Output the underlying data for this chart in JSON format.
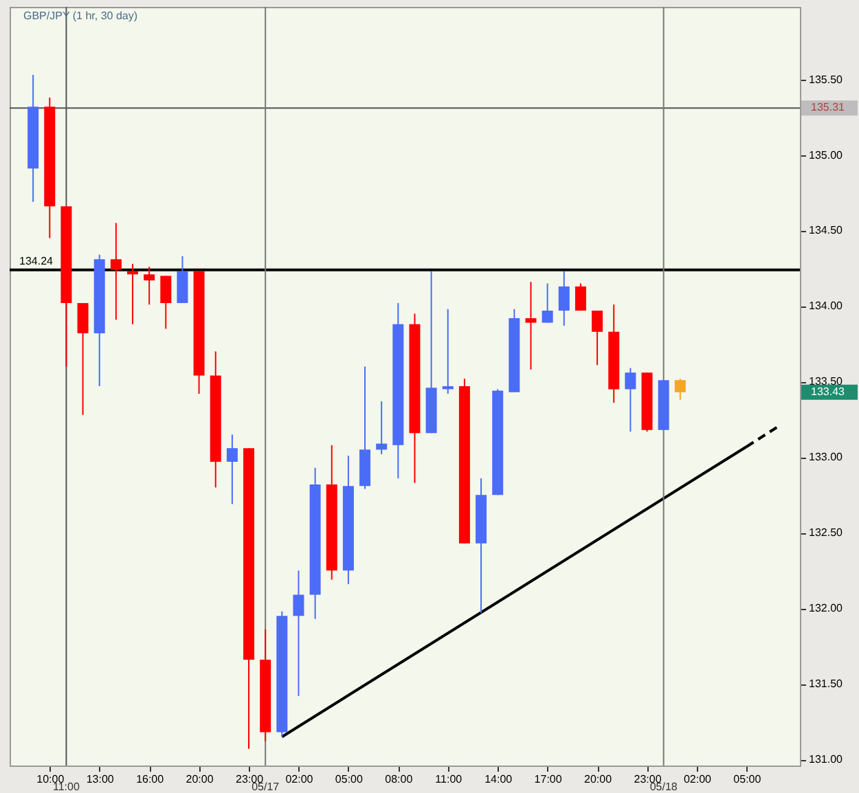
{
  "chart_data": {
    "type": "candlestick",
    "title": "GBP/JPY (1 hr, 30 day)",
    "categories": [
      null,
      "10:00",
      "11:00",
      null,
      "13:00",
      null,
      null,
      "16:00",
      null,
      null,
      "20:00",
      null,
      null,
      "23:00",
      "05/17",
      null,
      "02:00",
      null,
      null,
      "05:00",
      null,
      null,
      "08:00",
      null,
      null,
      "11:00",
      null,
      null,
      "14:00",
      null,
      null,
      "17:00",
      null,
      null,
      "20:00",
      null,
      null,
      "23:00",
      "05/18",
      null,
      "02:00",
      null,
      null,
      "05:00",
      null,
      null
    ],
    "ohlc": [
      [
        134.91,
        135.53,
        134.69,
        135.32
      ],
      [
        135.32,
        135.38,
        134.45,
        134.66
      ],
      [
        134.66,
        134.66,
        133.6,
        134.02
      ],
      [
        134.02,
        134.02,
        133.28,
        133.82
      ],
      [
        133.82,
        134.34,
        133.47,
        134.31
      ],
      [
        134.31,
        134.55,
        133.91,
        134.24
      ],
      [
        134.23,
        134.28,
        133.88,
        134.21
      ],
      [
        134.21,
        134.26,
        134.01,
        134.17
      ],
      [
        134.2,
        134.2,
        133.85,
        134.02
      ],
      [
        134.02,
        134.33,
        134.02,
        134.23
      ],
      [
        134.23,
        134.23,
        133.42,
        133.54
      ],
      [
        133.54,
        133.7,
        132.8,
        132.97
      ],
      [
        132.97,
        133.15,
        132.69,
        133.06
      ],
      [
        133.06,
        133.06,
        131.07,
        131.66
      ],
      [
        131.66,
        131.86,
        131.12,
        131.18
      ],
      [
        131.18,
        131.98,
        131.15,
        131.95
      ],
      [
        131.95,
        132.25,
        131.42,
        132.09
      ],
      [
        132.09,
        132.93,
        131.93,
        132.82
      ],
      [
        132.82,
        133.08,
        132.19,
        132.25
      ],
      [
        132.25,
        133.01,
        132.16,
        132.81
      ],
      [
        132.81,
        133.6,
        132.79,
        133.05
      ],
      [
        133.05,
        133.37,
        133.02,
        133.09
      ],
      [
        133.08,
        134.02,
        132.86,
        133.88
      ],
      [
        133.88,
        133.95,
        132.83,
        133.16
      ],
      [
        133.16,
        134.23,
        133.16,
        133.46
      ],
      [
        133.45,
        133.98,
        133.42,
        133.47
      ],
      [
        133.47,
        133.52,
        132.43,
        132.43
      ],
      [
        132.43,
        132.86,
        131.97,
        132.75
      ],
      [
        132.75,
        133.45,
        132.75,
        133.44
      ],
      [
        133.43,
        133.98,
        133.43,
        133.92
      ],
      [
        133.92,
        134.16,
        133.58,
        133.89
      ],
      [
        133.89,
        134.15,
        133.89,
        133.97
      ],
      [
        133.97,
        134.23,
        133.87,
        134.13
      ],
      [
        134.13,
        134.15,
        133.97,
        133.97
      ],
      [
        133.97,
        133.97,
        133.61,
        133.83
      ],
      [
        133.83,
        134.01,
        133.36,
        133.45
      ],
      [
        133.45,
        133.59,
        133.17,
        133.56
      ],
      [
        133.56,
        133.56,
        133.17,
        133.18
      ],
      [
        133.18,
        133.51,
        133.18,
        133.51
      ],
      [
        133.51,
        133.52,
        133.38,
        133.43
      ],
      null,
      null,
      null,
      null,
      null,
      null
    ],
    "colors": [
      "#4a6cf7",
      "#ff0000",
      "#ff0000",
      "#ff0000",
      "#4a6cf7",
      "#ff0000",
      "#ff0000",
      "#ff0000",
      "#ff0000",
      "#4a6cf7",
      "#ff0000",
      "#ff0000",
      "#4a6cf7",
      "#ff0000",
      "#ff0000",
      "#4a6cf7",
      "#4a6cf7",
      "#4a6cf7",
      "#ff0000",
      "#4a6cf7",
      "#4a6cf7",
      "#4a6cf7",
      "#4a6cf7",
      "#ff0000",
      "#4a6cf7",
      "#4a6cf7",
      "#ff0000",
      "#4a6cf7",
      "#4a6cf7",
      "#4a6cf7",
      "#ff0000",
      "#4a6cf7",
      "#4a6cf7",
      "#ff0000",
      "#ff0000",
      "#ff0000",
      "#4a6cf7",
      "#ff0000",
      "#4a6cf7",
      "#f5a623",
      null,
      null,
      null,
      null,
      null,
      null
    ],
    "series": [
      {
        "type": "line",
        "color": "#000000",
        "line_style": "solid",
        "values": [
          null,
          null,
          null,
          null,
          null,
          null,
          null,
          null,
          null,
          null,
          null,
          null,
          null,
          null,
          null,
          131.15,
          null,
          null,
          null,
          null,
          null,
          null,
          null,
          null,
          null,
          null,
          null,
          null,
          null,
          null,
          null,
          null,
          null,
          null,
          null,
          null,
          null,
          null,
          null,
          null,
          null,
          null,
          null,
          133.07,
          null,
          null
        ]
      },
      {
        "type": "line",
        "color": "#000000",
        "line_style": "dashed",
        "values": [
          null,
          null,
          null,
          null,
          null,
          null,
          null,
          null,
          null,
          null,
          null,
          null,
          null,
          null,
          null,
          null,
          null,
          null,
          null,
          null,
          null,
          null,
          null,
          null,
          null,
          null,
          null,
          null,
          null,
          null,
          null,
          null,
          null,
          null,
          null,
          null,
          null,
          null,
          null,
          null,
          null,
          null,
          null,
          133.07,
          null,
          133.21
        ]
      }
    ],
    "ylim": [
      130.96,
      135.98
    ],
    "yticks": [
      {
        "value": 131,
        "label": "131.00"
      },
      {
        "value": 131.5,
        "label": "131.50"
      },
      {
        "value": 132,
        "label": "132.00"
      },
      {
        "value": 132.5,
        "label": "132.50"
      },
      {
        "value": 133,
        "label": "133.00"
      },
      {
        "value": 133.5,
        "label": "133.50"
      },
      {
        "value": 134,
        "label": "134.00"
      },
      {
        "value": 134.5,
        "label": "134.50"
      },
      {
        "value": 135,
        "label": "135.00"
      },
      {
        "value": 135.5,
        "label": "135.50"
      }
    ],
    "ref_lines": [
      {
        "axis": "y",
        "value": 134.24,
        "label": "134.24",
        "color": "#000000"
      },
      {
        "axis": "y",
        "value": 135.31,
        "label": "135.31",
        "color": "#555555"
      },
      {
        "axis": "x",
        "value": "11:00",
        "color": "#555555"
      },
      {
        "axis": "x",
        "value": "05/17",
        "color": "#777777"
      },
      {
        "axis": "x",
        "value": "05/18",
        "color": "#777777"
      }
    ],
    "annotations": [
      "133.43"
    ],
    "grid": false
  }
}
